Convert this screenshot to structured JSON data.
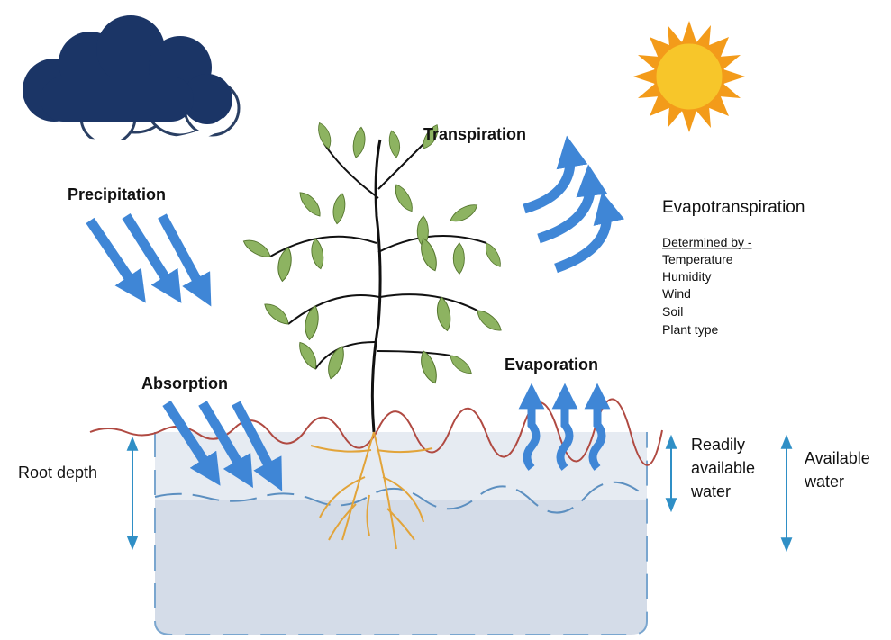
{
  "labels": {
    "precipitation": "Precipitation",
    "transpiration": "Transpiration",
    "evapotranspiration": "Evapotranspiration",
    "determined_by": "Determined by -",
    "factors": [
      "Temperature",
      "Humidity",
      "Wind",
      "Soil",
      "Plant type"
    ],
    "absorption": "Absorption",
    "evaporation": "Evaporation",
    "root_depth": "Root depth",
    "readily_available_water": [
      "Readily",
      "available",
      "water"
    ],
    "available_water": [
      "Available",
      "water"
    ]
  }
}
